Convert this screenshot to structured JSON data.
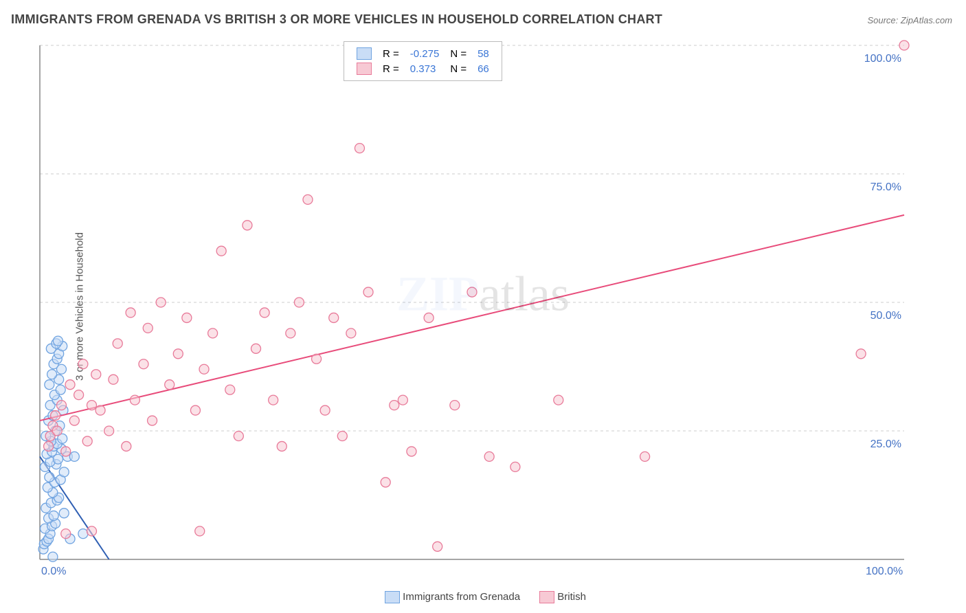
{
  "title": "IMMIGRANTS FROM GRENADA VS BRITISH 3 OR MORE VEHICLES IN HOUSEHOLD CORRELATION CHART",
  "source": "Source: ZipAtlas.com",
  "ylabel": "3 or more Vehicles in Household",
  "watermark_zip": "ZIP",
  "watermark_atlas": "atlas",
  "chart": {
    "type": "scatter",
    "xlim": [
      0,
      100
    ],
    "ylim": [
      0,
      100
    ],
    "xtick_labels": {
      "0": "0.0%",
      "100": "100.0%"
    },
    "ytick_labels": {
      "25": "25.0%",
      "50": "50.0%",
      "75": "75.0%",
      "100": "100.0%"
    },
    "grid_color": "#cccccc",
    "grid_dash": "4 4",
    "axis_color": "#888888",
    "background_color": "#ffffff",
    "tick_label_color": "#4472c4",
    "tick_label_fontsize": 16,
    "marker_radius": 7,
    "marker_stroke_width": 1.3,
    "trend_line_width": 2,
    "series": [
      {
        "name": "Immigrants from Grenada",
        "fill": "#c9ddf6",
        "stroke": "#6fa3e0",
        "fill_opacity": 0.55,
        "R": -0.275,
        "N": 58,
        "trend": {
          "x1": 0,
          "y1": 20,
          "x2": 8,
          "y2": 0,
          "color": "#2f5fb3"
        },
        "points": [
          [
            0.4,
            2
          ],
          [
            0.5,
            3
          ],
          [
            0.8,
            3.5
          ],
          [
            1,
            4
          ],
          [
            1.2,
            5
          ],
          [
            0.6,
            6
          ],
          [
            1.4,
            6.5
          ],
          [
            1.8,
            7
          ],
          [
            1,
            8
          ],
          [
            1.6,
            8.5
          ],
          [
            0.7,
            10
          ],
          [
            1.3,
            11
          ],
          [
            2,
            11.5
          ],
          [
            2.2,
            12
          ],
          [
            1.5,
            13
          ],
          [
            0.9,
            14
          ],
          [
            1.7,
            15
          ],
          [
            2.4,
            15.5
          ],
          [
            1.1,
            16
          ],
          [
            2.8,
            17
          ],
          [
            0.6,
            18
          ],
          [
            1.9,
            18.5
          ],
          [
            1.2,
            19
          ],
          [
            2.1,
            19.5
          ],
          [
            3.2,
            20
          ],
          [
            0.8,
            20.5
          ],
          [
            1.4,
            21
          ],
          [
            2.5,
            21.5
          ],
          [
            1.6,
            22
          ],
          [
            2.0,
            22.5
          ],
          [
            1.3,
            23
          ],
          [
            2.6,
            23.5
          ],
          [
            0.7,
            24
          ],
          [
            1.8,
            25
          ],
          [
            2.3,
            26
          ],
          [
            1.0,
            27
          ],
          [
            1.5,
            28
          ],
          [
            2.7,
            29
          ],
          [
            1.2,
            30
          ],
          [
            2.0,
            31
          ],
          [
            1.7,
            32
          ],
          [
            2.4,
            33
          ],
          [
            1.1,
            34
          ],
          [
            2.2,
            35
          ],
          [
            1.4,
            36
          ],
          [
            2.5,
            37
          ],
          [
            1.6,
            38
          ],
          [
            2.0,
            39
          ],
          [
            2.2,
            40
          ],
          [
            1.3,
            41
          ],
          [
            2.6,
            41.5
          ],
          [
            1.9,
            42
          ],
          [
            2.1,
            42.5
          ],
          [
            1.5,
            0.5
          ],
          [
            3.5,
            4
          ],
          [
            4,
            20
          ],
          [
            5,
            5
          ],
          [
            2.8,
            9
          ]
        ]
      },
      {
        "name": "British",
        "fill": "#f7c9d4",
        "stroke": "#e87a99",
        "fill_opacity": 0.55,
        "R": 0.373,
        "N": 66,
        "trend": {
          "x1": 0,
          "y1": 27,
          "x2": 100,
          "y2": 67,
          "color": "#e84b7a"
        },
        "points": [
          [
            1,
            22
          ],
          [
            1.2,
            24
          ],
          [
            1.5,
            26
          ],
          [
            1.8,
            28
          ],
          [
            2,
            25
          ],
          [
            2.5,
            30
          ],
          [
            3,
            21
          ],
          [
            3.5,
            34
          ],
          [
            4,
            27
          ],
          [
            4.5,
            32
          ],
          [
            5,
            38
          ],
          [
            5.5,
            23
          ],
          [
            6,
            30
          ],
          [
            6.5,
            36
          ],
          [
            7,
            29
          ],
          [
            8,
            25
          ],
          [
            8.5,
            35
          ],
          [
            9,
            42
          ],
          [
            10,
            22
          ],
          [
            10.5,
            48
          ],
          [
            11,
            31
          ],
          [
            12,
            38
          ],
          [
            12.5,
            45
          ],
          [
            13,
            27
          ],
          [
            14,
            50
          ],
          [
            15,
            34
          ],
          [
            16,
            40
          ],
          [
            17,
            47
          ],
          [
            18,
            29
          ],
          [
            18.5,
            5.5
          ],
          [
            19,
            37
          ],
          [
            20,
            44
          ],
          [
            21,
            60
          ],
          [
            22,
            33
          ],
          [
            23,
            24
          ],
          [
            24,
            65
          ],
          [
            25,
            41
          ],
          [
            26,
            48
          ],
          [
            27,
            31
          ],
          [
            28,
            22
          ],
          [
            29,
            44
          ],
          [
            30,
            50
          ],
          [
            31,
            70
          ],
          [
            32,
            39
          ],
          [
            33,
            29
          ],
          [
            34,
            47
          ],
          [
            35,
            24
          ],
          [
            36,
            44
          ],
          [
            37,
            80
          ],
          [
            38,
            52
          ],
          [
            40,
            15
          ],
          [
            41,
            30
          ],
          [
            42,
            31
          ],
          [
            43,
            21
          ],
          [
            45,
            47
          ],
          [
            46,
            2.5
          ],
          [
            48,
            30
          ],
          [
            50,
            52
          ],
          [
            52,
            20
          ],
          [
            55,
            18
          ],
          [
            60,
            31
          ],
          [
            70,
            20
          ],
          [
            95,
            40
          ],
          [
            100,
            100
          ],
          [
            3,
            5
          ],
          [
            6,
            5.5
          ]
        ]
      }
    ]
  },
  "legend_top": {
    "r_label": "R =",
    "n_label": "N ="
  },
  "legend_bottom": {
    "items": [
      "Immigrants from Grenada",
      "British"
    ]
  }
}
